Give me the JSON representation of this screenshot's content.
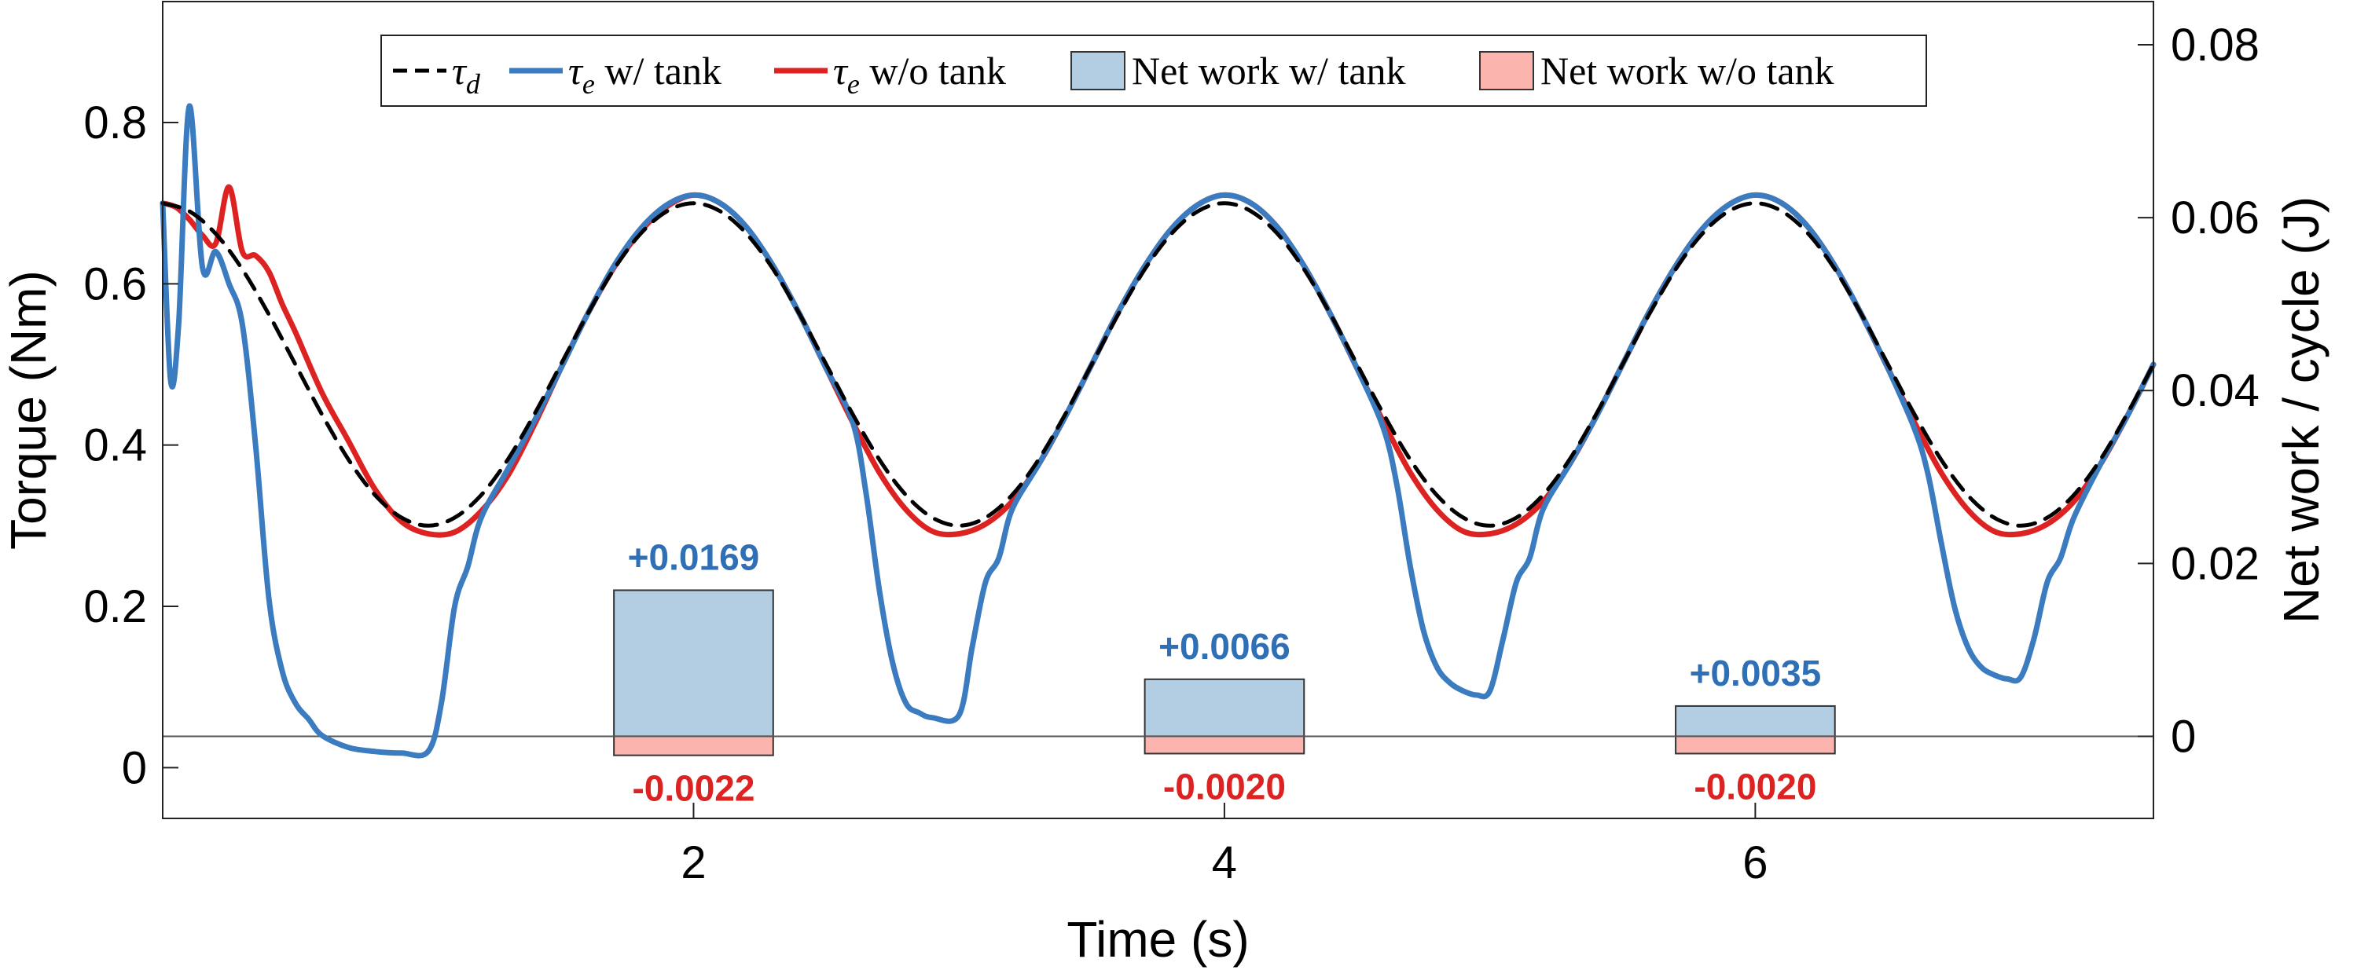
{
  "chart_data": {
    "type": "line",
    "x_axis": {
      "label": "Time (s)",
      "range": [
        0,
        7.5
      ],
      "ticks": [
        2,
        4,
        6
      ]
    },
    "y_axis_left": {
      "label": "Torque (Nm)",
      "range": [
        -0.063,
        0.95
      ],
      "ticks": [
        0,
        0.2,
        0.4,
        0.6,
        0.8
      ]
    },
    "y_axis_right": {
      "label": "Net work / cycle  (J)",
      "range": [
        -0.0095,
        0.085
      ],
      "ticks": [
        0,
        0.02,
        0.04,
        0.06,
        0.08
      ]
    },
    "grid": false,
    "legend": {
      "placement": "top-center",
      "entries": [
        {
          "symbol": "τ",
          "subscript": "d",
          "suffix": "",
          "style": "dashed-line",
          "color": "#000000"
        },
        {
          "symbol": "τ",
          "subscript": "e",
          "suffix": " w/ tank",
          "style": "line",
          "color": "#3b7bbf"
        },
        {
          "symbol": "τ",
          "subscript": "e",
          "suffix": " w/o tank",
          "style": "line",
          "color": "#dd2222"
        },
        {
          "symbol": "",
          "subscript": "",
          "suffix": "Net work w/ tank",
          "style": "patch",
          "color": "#b3cde3"
        },
        {
          "symbol": "",
          "subscript": "",
          "suffix": "Net work w/o tank",
          "style": "patch",
          "color": "#fbb4ae"
        }
      ]
    },
    "series": [
      {
        "key": "tau_d",
        "color": "#000000",
        "dashed": true,
        "x": [
          0,
          0.1,
          0.2,
          0.3,
          0.4,
          0.5,
          0.6,
          0.7,
          0.8,
          0.9,
          1.0,
          1.1,
          1.2,
          1.3,
          1.4,
          1.5,
          1.6,
          1.7,
          1.8,
          1.9,
          2.0,
          2.1,
          2.2,
          2.3,
          2.4,
          2.5,
          2.6,
          2.7,
          2.8,
          2.9,
          3.0,
          3.1,
          3.2,
          3.3,
          3.4,
          3.5,
          3.6,
          3.7,
          3.8,
          3.9,
          4.0,
          4.1,
          4.2,
          4.3,
          4.4,
          4.5,
          4.6,
          4.7,
          4.8,
          4.9,
          5.0,
          5.1,
          5.2,
          5.3,
          5.4,
          5.5,
          5.6,
          5.7,
          5.8,
          5.9,
          6.0,
          6.1,
          6.2,
          6.3,
          6.4,
          6.5,
          6.6,
          6.7,
          6.8,
          6.9,
          7.0,
          7.1,
          7.2,
          7.3,
          7.4,
          7.5
        ],
        "y": [
          0.7,
          0.69,
          0.662,
          0.618,
          0.562,
          0.5,
          0.438,
          0.382,
          0.338,
          0.31,
          0.3,
          0.31,
          0.338,
          0.382,
          0.438,
          0.5,
          0.562,
          0.618,
          0.662,
          0.69,
          0.7,
          0.69,
          0.662,
          0.618,
          0.562,
          0.5,
          0.438,
          0.382,
          0.338,
          0.31,
          0.3,
          0.31,
          0.338,
          0.382,
          0.438,
          0.5,
          0.562,
          0.618,
          0.662,
          0.69,
          0.7,
          0.69,
          0.662,
          0.618,
          0.562,
          0.5,
          0.438,
          0.382,
          0.338,
          0.31,
          0.3,
          0.31,
          0.338,
          0.382,
          0.438,
          0.5,
          0.562,
          0.618,
          0.662,
          0.69,
          0.7,
          0.69,
          0.662,
          0.618,
          0.562,
          0.5,
          0.438,
          0.382,
          0.338,
          0.31,
          0.3,
          0.31,
          0.338,
          0.382,
          0.438,
          0.5
        ]
      },
      {
        "key": "tau_e_without_tank",
        "color": "#dd2222",
        "dashed": false,
        "x": [
          0,
          0.05,
          0.1,
          0.15,
          0.2,
          0.25,
          0.3,
          0.35,
          0.4,
          0.45,
          0.5,
          0.6,
          0.7,
          0.8,
          0.9,
          1.0,
          1.1,
          1.2,
          1.3,
          1.4,
          1.5,
          1.6,
          1.7,
          1.8,
          1.9,
          2.0,
          2.1,
          2.2,
          2.3,
          2.4,
          2.5,
          2.6,
          2.7,
          2.8,
          2.9,
          3.0,
          3.1,
          3.2,
          3.3,
          3.4,
          3.5,
          3.6,
          3.7,
          3.8,
          3.9,
          4.0,
          4.1,
          4.2,
          4.3,
          4.4,
          4.5,
          4.6,
          4.7,
          4.8,
          4.9,
          5.0,
          5.1,
          5.2,
          5.3,
          5.4,
          5.5,
          5.6,
          5.7,
          5.8,
          5.9,
          6.0,
          6.1,
          6.2,
          6.3,
          6.4,
          6.5,
          6.6,
          6.7,
          6.8,
          6.9,
          7.0,
          7.1,
          7.2,
          7.3,
          7.4,
          7.5
        ],
        "y": [
          0.7,
          0.695,
          0.68,
          0.66,
          0.65,
          0.72,
          0.64,
          0.635,
          0.615,
          0.575,
          0.54,
          0.465,
          0.405,
          0.345,
          0.305,
          0.29,
          0.292,
          0.318,
          0.362,
          0.425,
          0.495,
          0.562,
          0.62,
          0.665,
          0.696,
          0.71,
          0.7,
          0.67,
          0.622,
          0.562,
          0.495,
          0.428,
          0.366,
          0.32,
          0.293,
          0.29,
          0.302,
          0.33,
          0.376,
          0.435,
          0.5,
          0.565,
          0.622,
          0.668,
          0.698,
          0.71,
          0.7,
          0.67,
          0.622,
          0.562,
          0.495,
          0.428,
          0.366,
          0.32,
          0.293,
          0.29,
          0.302,
          0.33,
          0.376,
          0.435,
          0.5,
          0.565,
          0.622,
          0.668,
          0.698,
          0.71,
          0.7,
          0.67,
          0.622,
          0.562,
          0.495,
          0.428,
          0.366,
          0.32,
          0.293,
          0.29,
          0.302,
          0.33,
          0.376,
          0.435,
          0.5
        ]
      },
      {
        "key": "tau_e_with_tank",
        "color": "#3b7bbf",
        "dashed": false,
        "x": [
          0,
          0.03,
          0.06,
          0.1,
          0.15,
          0.2,
          0.25,
          0.3,
          0.35,
          0.4,
          0.45,
          0.5,
          0.55,
          0.6,
          0.7,
          0.8,
          0.9,
          1.0,
          1.05,
          1.1,
          1.15,
          1.2,
          1.3,
          1.4,
          1.5,
          1.6,
          1.7,
          1.8,
          1.9,
          2.0,
          2.1,
          2.2,
          2.3,
          2.4,
          2.5,
          2.6,
          2.65,
          2.7,
          2.75,
          2.8,
          2.85,
          2.9,
          3.0,
          3.05,
          3.1,
          3.15,
          3.2,
          3.3,
          3.4,
          3.5,
          3.6,
          3.7,
          3.8,
          3.9,
          4.0,
          4.1,
          4.2,
          4.3,
          4.4,
          4.5,
          4.6,
          4.65,
          4.7,
          4.75,
          4.8,
          4.85,
          4.9,
          4.95,
          5.0,
          5.05,
          5.1,
          5.15,
          5.2,
          5.3,
          5.4,
          5.5,
          5.6,
          5.7,
          5.8,
          5.9,
          6.0,
          6.1,
          6.2,
          6.3,
          6.4,
          6.5,
          6.6,
          6.65,
          6.7,
          6.75,
          6.8,
          6.85,
          6.9,
          6.95,
          7.0,
          7.05,
          7.1,
          7.15,
          7.2,
          7.3,
          7.4,
          7.5
        ],
        "y": [
          0.7,
          0.48,
          0.55,
          0.82,
          0.62,
          0.64,
          0.6,
          0.55,
          0.4,
          0.21,
          0.12,
          0.08,
          0.06,
          0.04,
          0.025,
          0.02,
          0.018,
          0.02,
          0.08,
          0.2,
          0.25,
          0.31,
          0.37,
          0.43,
          0.495,
          0.562,
          0.622,
          0.668,
          0.698,
          0.71,
          0.7,
          0.67,
          0.622,
          0.562,
          0.495,
          0.428,
          0.34,
          0.22,
          0.13,
          0.08,
          0.068,
          0.062,
          0.065,
          0.15,
          0.23,
          0.26,
          0.32,
          0.376,
          0.435,
          0.5,
          0.565,
          0.622,
          0.668,
          0.698,
          0.71,
          0.7,
          0.67,
          0.622,
          0.562,
          0.495,
          0.42,
          0.35,
          0.25,
          0.17,
          0.125,
          0.105,
          0.095,
          0.09,
          0.095,
          0.16,
          0.23,
          0.26,
          0.32,
          0.376,
          0.435,
          0.5,
          0.565,
          0.622,
          0.668,
          0.698,
          0.71,
          0.7,
          0.67,
          0.622,
          0.562,
          0.495,
          0.42,
          0.365,
          0.28,
          0.2,
          0.15,
          0.125,
          0.115,
          0.11,
          0.112,
          0.16,
          0.23,
          0.26,
          0.31,
          0.376,
          0.435,
          0.5
        ]
      }
    ],
    "bars": [
      {
        "x": 2,
        "with_tank": 0.0169,
        "without_tank": -0.0022,
        "label_with": "+0.0169",
        "label_without": "-0.0022"
      },
      {
        "x": 4,
        "with_tank": 0.0066,
        "without_tank": -0.002,
        "label_with": "+0.0066",
        "label_without": "-0.0020"
      },
      {
        "x": 6,
        "with_tank": 0.0035,
        "without_tank": -0.002,
        "label_with": "+0.0035",
        "label_without": "-0.0020"
      }
    ],
    "bar_width": 0.6,
    "colors": {
      "with_tank_line": "#3b7bbf",
      "without_tank_line": "#dd2222",
      "with_tank_fill": "#b3cde3",
      "without_tank_fill": "#fbb4ae",
      "with_tank_label": "#2f6fb5",
      "without_tank_label": "#dd2222"
    }
  }
}
